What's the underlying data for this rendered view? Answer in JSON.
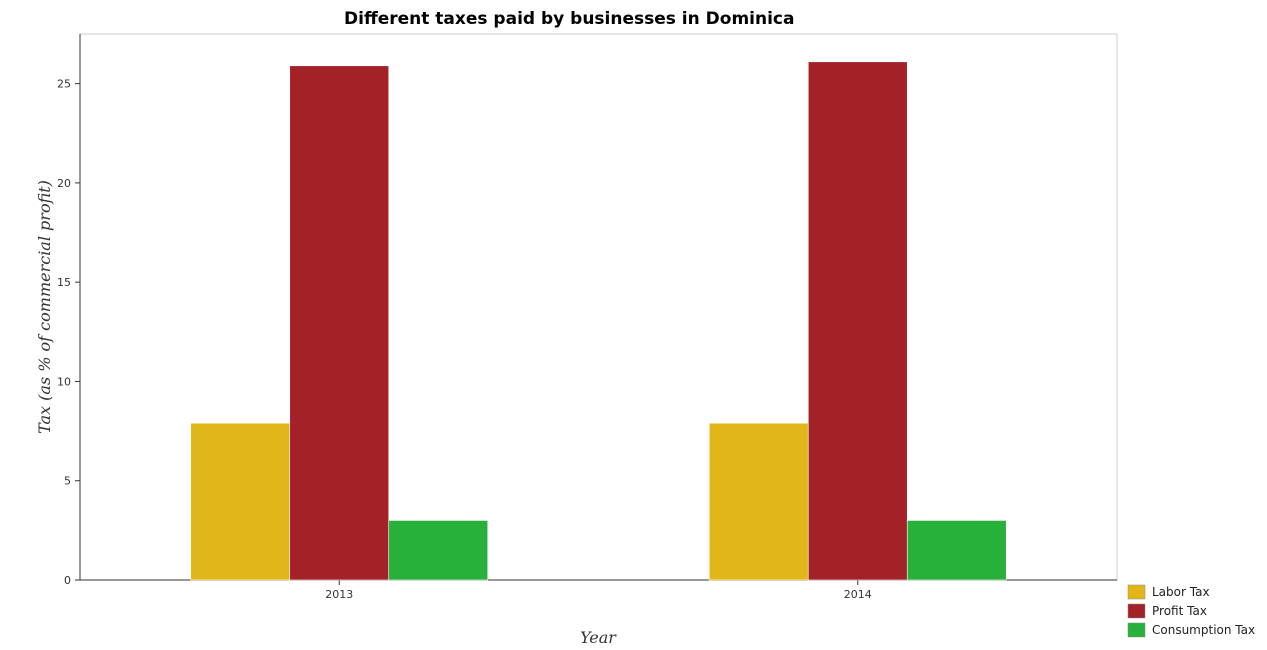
{
  "chart_data": {
    "type": "bar",
    "title": "Different taxes paid by businesses in Dominica",
    "xlabel": "Year",
    "ylabel": "Tax (as % of commercial profit)",
    "categories": [
      "2013",
      "2014"
    ],
    "series": [
      {
        "name": "Labor Tax",
        "values": [
          7.9,
          7.9
        ],
        "color": "#e2b619"
      },
      {
        "name": "Profit Tax",
        "values": [
          25.9,
          26.1
        ],
        "color": "#a32228"
      },
      {
        "name": "Consumption Tax",
        "values": [
          3.0,
          3.0
        ],
        "color": "#27b13a"
      }
    ],
    "ylim": [
      0,
      27.5
    ],
    "yticks": [
      0,
      5,
      10,
      15,
      20,
      25
    ],
    "grid": false,
    "legend_position": "bottom-right"
  }
}
